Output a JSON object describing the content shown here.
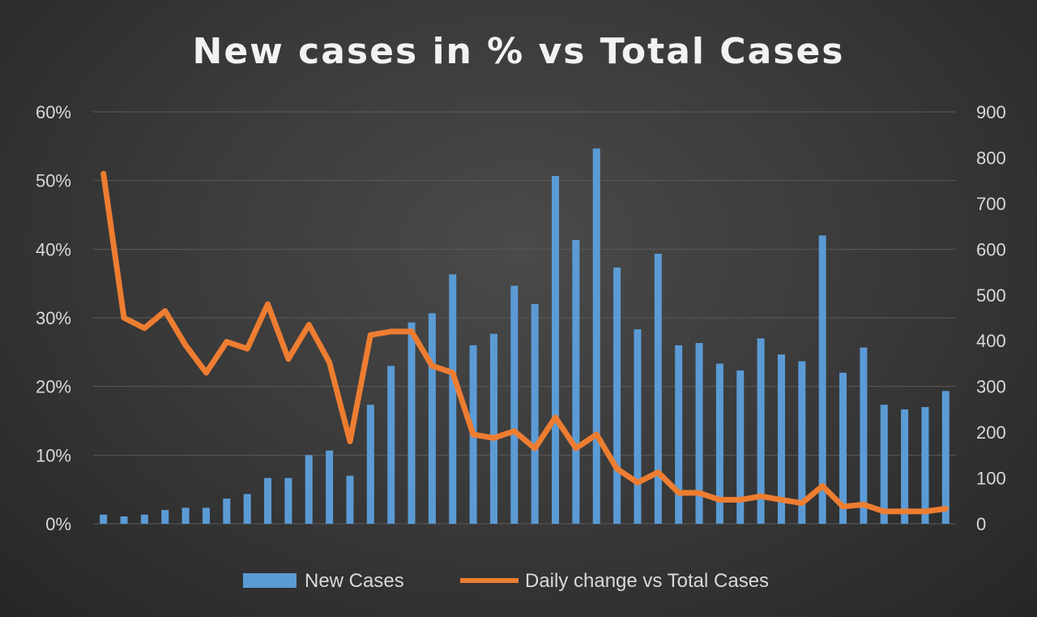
{
  "chart_data": {
    "type": "bar",
    "title": "New cases in % vs Total Cases",
    "y_left": {
      "min": 0,
      "max": 0.6,
      "ticks": [
        0,
        0.1,
        0.2,
        0.3,
        0.4,
        0.5,
        0.6
      ],
      "tick_labels": [
        "0%",
        "10%",
        "20%",
        "30%",
        "40%",
        "50%",
        "60%"
      ]
    },
    "y_right": {
      "min": 0,
      "max": 900,
      "ticks": [
        0,
        100,
        200,
        300,
        400,
        500,
        600,
        700,
        800,
        900
      ],
      "tick_labels": [
        "0",
        "100",
        "200",
        "300",
        "400",
        "500",
        "600",
        "700",
        "800",
        "900"
      ]
    },
    "grid": true,
    "legend_position": "bottom",
    "series": [
      {
        "name": "New Cases",
        "kind": "bar",
        "axis": "right",
        "color": "#5b9bd5",
        "values": [
          20,
          16,
          20,
          30,
          35,
          35,
          55,
          65,
          100,
          100,
          150,
          160,
          105,
          260,
          345,
          440,
          460,
          545,
          390,
          415,
          520,
          480,
          760,
          620,
          820,
          560,
          425,
          590,
          390,
          395,
          350,
          335,
          405,
          370,
          355,
          630,
          330,
          385,
          260,
          250,
          255,
          290
        ]
      },
      {
        "name": "Daily change vs Total Cases",
        "kind": "line",
        "axis": "left",
        "color": "#ed7d31",
        "values": [
          0.51,
          0.3,
          0.285,
          0.31,
          0.26,
          0.22,
          0.265,
          0.255,
          0.32,
          0.24,
          0.29,
          0.235,
          0.12,
          0.275,
          0.28,
          0.28,
          0.23,
          0.22,
          0.13,
          0.125,
          0.135,
          0.11,
          0.155,
          0.11,
          0.13,
          0.08,
          0.06,
          0.075,
          0.045,
          0.045,
          0.035,
          0.035,
          0.04,
          0.035,
          0.03,
          0.055,
          0.025,
          0.028,
          0.018,
          0.018,
          0.018,
          0.022
        ]
      }
    ]
  }
}
